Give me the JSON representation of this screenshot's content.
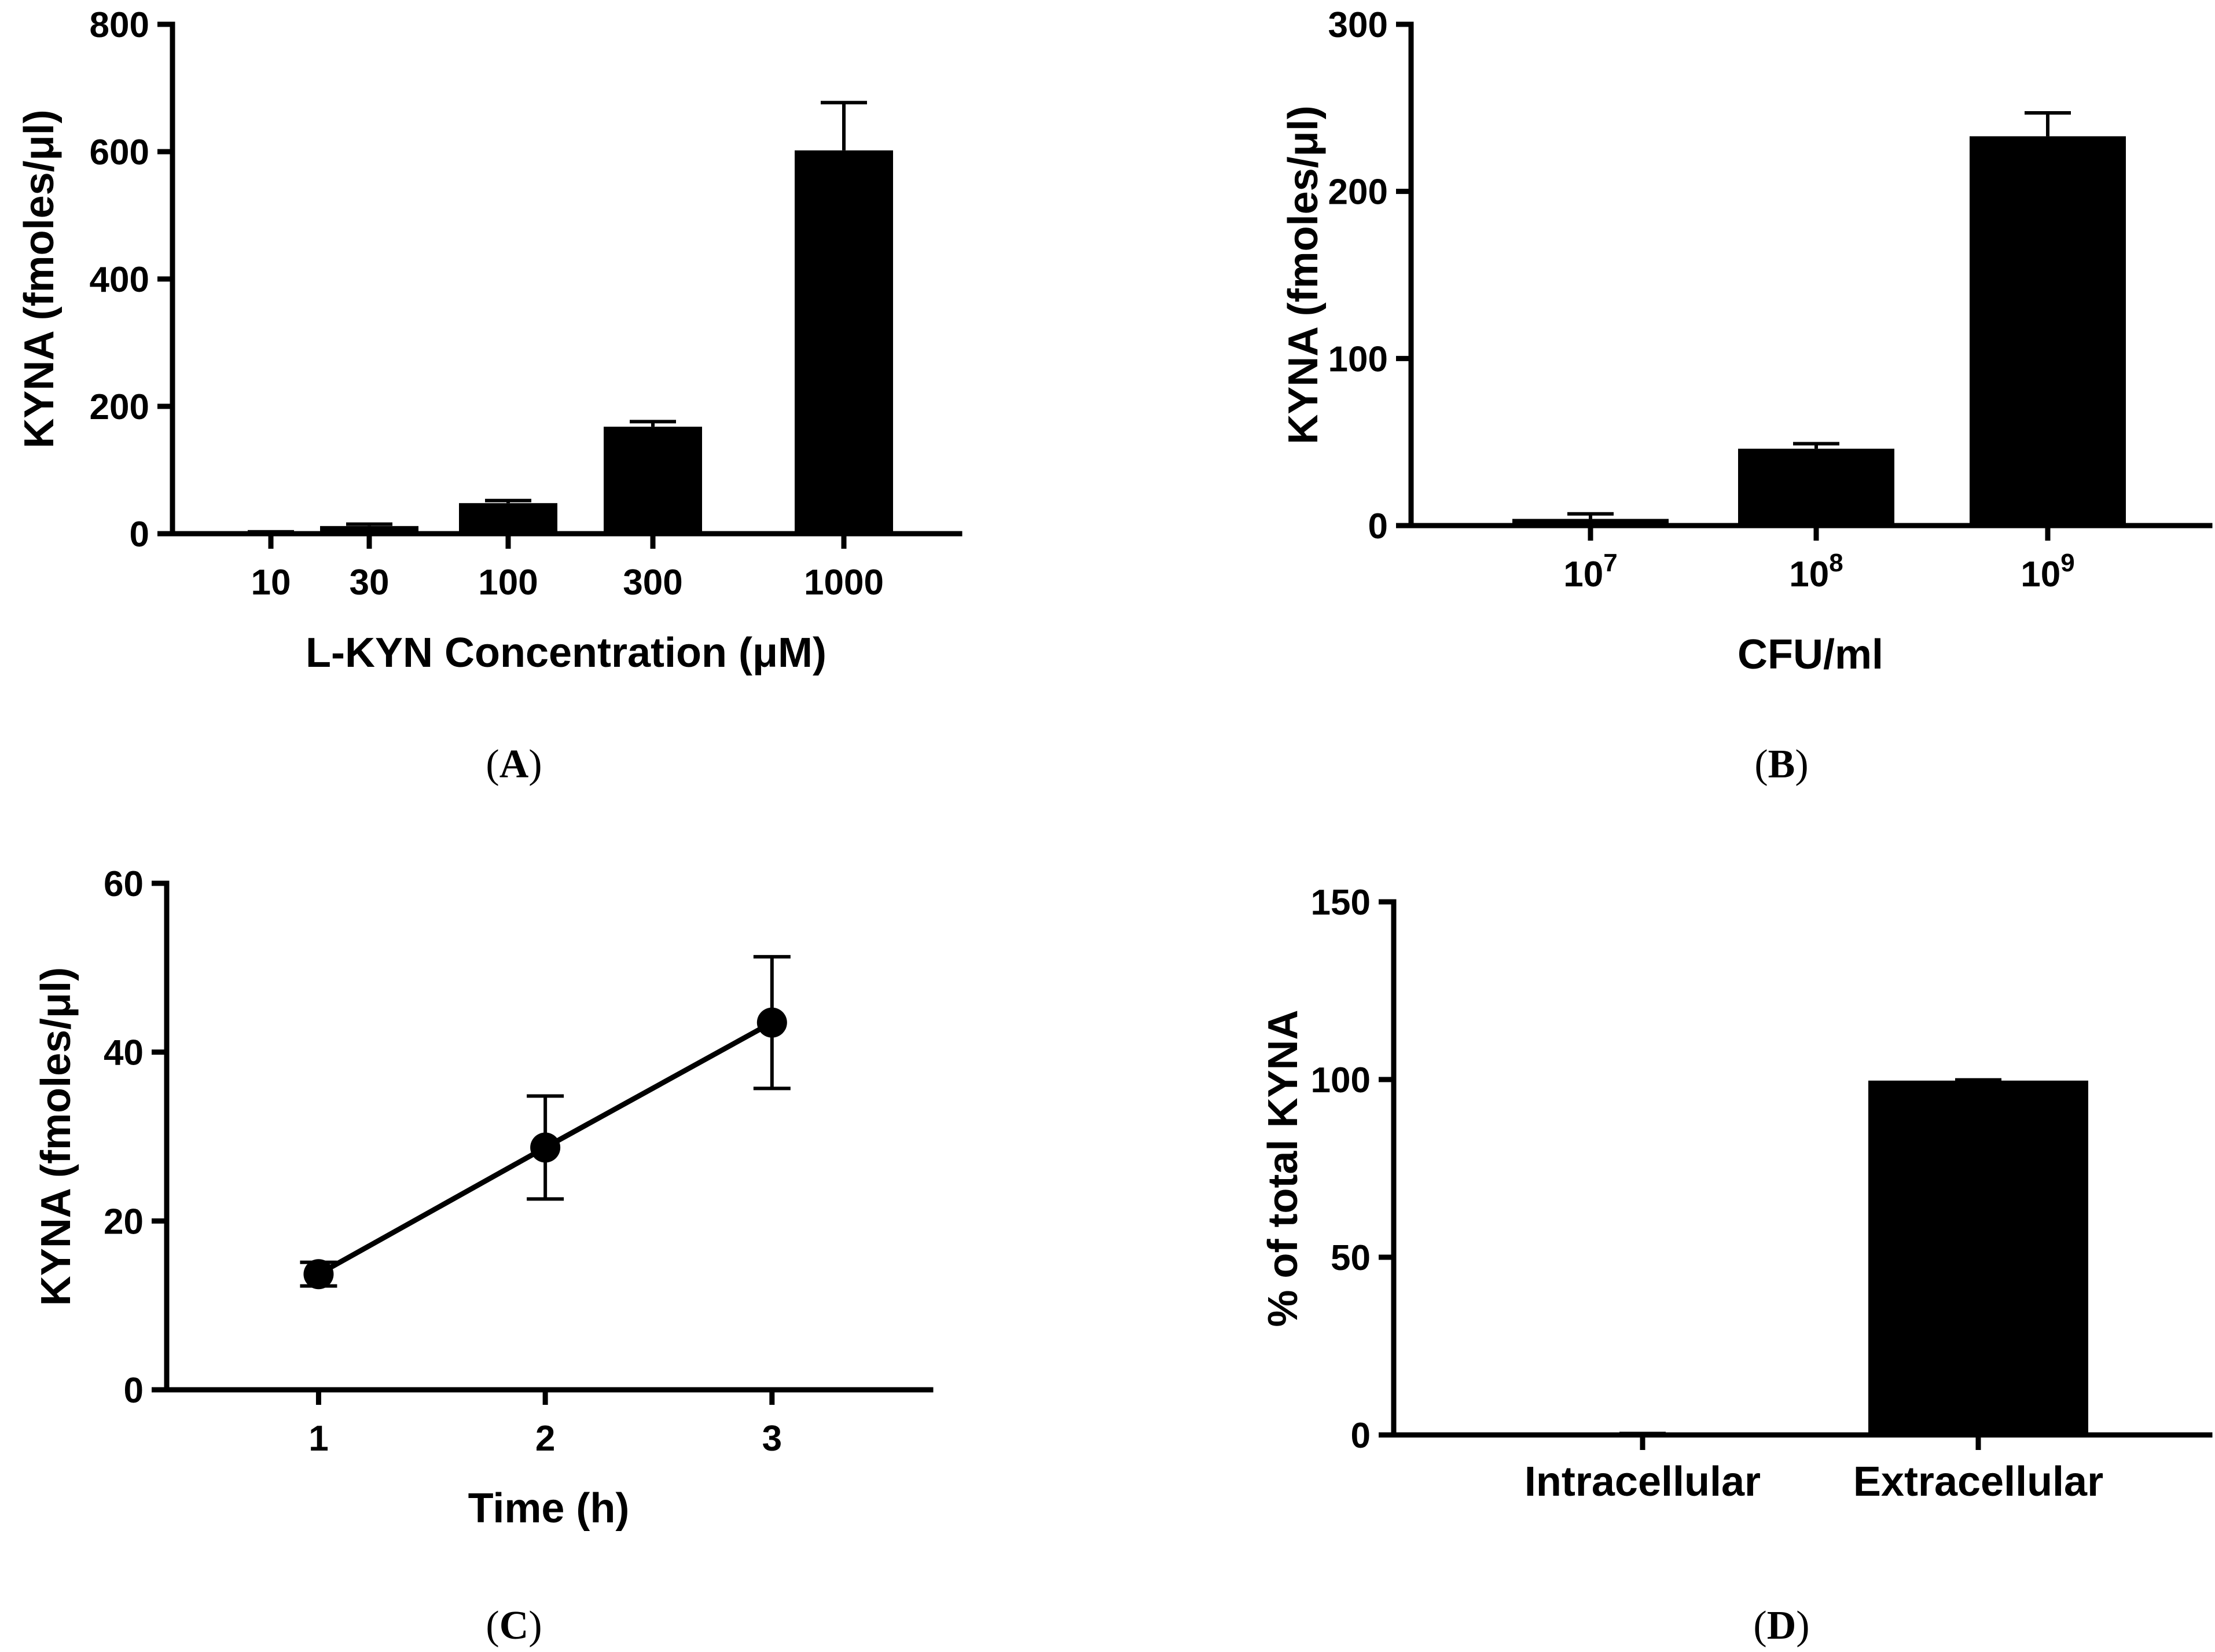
{
  "chart_data": [
    {
      "id": "A",
      "type": "bar",
      "panel_label": "(A)",
      "xlabel": "L-KYN Concentration (μM)",
      "ylabel": "KYNA (fmoles/μl)",
      "categories": [
        "10",
        "30",
        "100",
        "300",
        "1000"
      ],
      "values": [
        2,
        12,
        48,
        168,
        602
      ],
      "errors": [
        1,
        3,
        4,
        8,
        75
      ],
      "ylim": [
        0,
        800
      ],
      "yticks": [
        0,
        200,
        400,
        600,
        800
      ],
      "ytick_labels": [
        "0",
        "200",
        "400",
        "600",
        "800"
      ]
    },
    {
      "id": "B",
      "type": "bar",
      "panel_label": "(B)",
      "xlabel": "CFU/ml",
      "ylabel": "KYNA (fmoles/μl)",
      "categories": [
        {
          "base": "10",
          "exp": "7"
        },
        {
          "base": "10",
          "exp": "8"
        },
        {
          "base": "10",
          "exp": "9"
        }
      ],
      "values": [
        4,
        46,
        233
      ],
      "errors": [
        3,
        3,
        14
      ],
      "ylim": [
        0,
        300
      ],
      "yticks": [
        0,
        100,
        200,
        300
      ],
      "ytick_labels": [
        "0",
        "100",
        "200",
        "300"
      ]
    },
    {
      "id": "C",
      "type": "line",
      "panel_label": "(C)",
      "xlabel": "Time (h)",
      "ylabel": "KYNA (fmoles/μl)",
      "x": [
        1,
        2,
        3
      ],
      "y": [
        13.7,
        28.7,
        43.5
      ],
      "errors": [
        1.4,
        6.1,
        7.8
      ],
      "xlim": [
        0.33,
        3.7
      ],
      "ylim": [
        0,
        60
      ],
      "xticks": [
        1,
        2,
        3
      ],
      "xtick_labels": [
        "1",
        "2",
        "3"
      ],
      "yticks": [
        0,
        20,
        40,
        60
      ],
      "ytick_labels": [
        "0",
        "20",
        "40",
        "60"
      ]
    },
    {
      "id": "D",
      "type": "bar",
      "panel_label": "(D)",
      "xlabel": "",
      "ylabel": "% of total KYNA",
      "categories": [
        "Intracellular",
        "Extracellular"
      ],
      "values": [
        0.3,
        99.7
      ],
      "errors": [
        0.1,
        0.2
      ],
      "ylim": [
        0,
        150
      ],
      "yticks": [
        0,
        50,
        100,
        150
      ],
      "ytick_labels": [
        "0",
        "50",
        "100",
        "150"
      ]
    }
  ]
}
